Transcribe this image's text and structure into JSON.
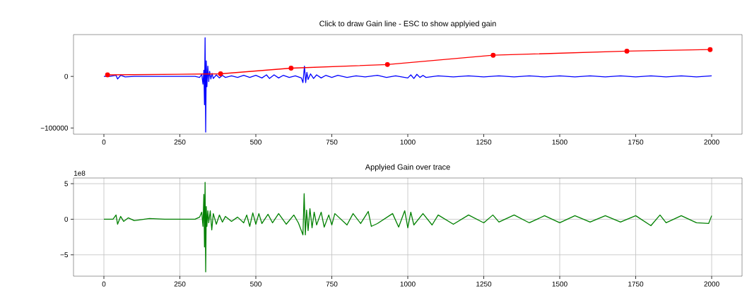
{
  "chart_data": [
    {
      "type": "line",
      "title": "Click to draw Gain line    -    ESC to show applyied gain",
      "xlim": [
        -100,
        2100
      ],
      "ylim": [
        -112000,
        81000
      ],
      "xticks": [
        0,
        250,
        500,
        750,
        1000,
        1250,
        1500,
        1750,
        2000
      ],
      "yticks": [
        {
          "value": -100000,
          "label": "−100000"
        },
        0
      ],
      "grid": false,
      "series": [
        {
          "color": "#0000ff",
          "marker": "none",
          "x": [
            0,
            20,
            40,
            45,
            55,
            70,
            100,
            150,
            200,
            250,
            300,
            315,
            322,
            326,
            329,
            331,
            333,
            335,
            337,
            339,
            342,
            345,
            348,
            352,
            356,
            360,
            370,
            380,
            390,
            400,
            420,
            440,
            460,
            480,
            500,
            520,
            535,
            545,
            560,
            575,
            590,
            610,
            630,
            650,
            655,
            660,
            664,
            668,
            672,
            680,
            690,
            700,
            715,
            730,
            750,
            770,
            800,
            830,
            860,
            900,
            930,
            960,
            1000,
            1010,
            1020,
            1030,
            1040,
            1050,
            1060,
            1100,
            1150,
            1200,
            1250,
            1300,
            1350,
            1400,
            1450,
            1500,
            1550,
            1600,
            1650,
            1700,
            1750,
            1800,
            1850,
            1900,
            1950,
            2000
          ],
          "values": [
            0,
            0,
            2000,
            -5000,
            2000,
            -1000,
            0,
            0,
            0,
            0,
            0,
            -2000,
            4000,
            -15000,
            12000,
            -55000,
            75000,
            -108000,
            30000,
            -20000,
            20000,
            -10000,
            10000,
            -5000,
            6000,
            -4000,
            3000,
            -3000,
            2000,
            -2000,
            1000,
            -2000,
            2000,
            -2000,
            2000,
            -3000,
            3000,
            -4000,
            3000,
            -3000,
            2000,
            -2000,
            1000,
            -3000,
            -12000,
            20000,
            -12000,
            8000,
            -6000,
            5000,
            -4000,
            3000,
            -3000,
            2000,
            -2000,
            2000,
            -2000,
            1000,
            -1000,
            2000,
            -2000,
            1000,
            -3000,
            3000,
            -4000,
            4000,
            -2000,
            2000,
            -2000,
            1000,
            -1000,
            1000,
            -1000,
            1000,
            -1000,
            1000,
            -1000,
            1000,
            -1000,
            1000,
            -1000,
            1000,
            -1000,
            1000,
            -1000,
            1000,
            -1000,
            1000
          ]
        },
        {
          "color": "#ff0000",
          "marker": "circle",
          "x": [
            12,
            384,
            616,
            933,
            1281,
            1721,
            1995
          ],
          "values": [
            3000,
            5000,
            16000,
            23000,
            41000,
            49000,
            52000
          ]
        }
      ]
    },
    {
      "type": "line",
      "title": "Applyied Gain over trace",
      "xlim": [
        -100,
        2100
      ],
      "ylim": [
        -8.0,
        5.8
      ],
      "xticks": [
        0,
        250,
        500,
        750,
        1000,
        1250,
        1500,
        1750,
        2000
      ],
      "yticks": [
        {
          "value": -5,
          "label": "−5"
        },
        0,
        5
      ],
      "grid": true,
      "annotations": [
        "1e8"
      ],
      "series": [
        {
          "color": "#008000",
          "marker": "none",
          "x": [
            0,
            30,
            40,
            45,
            55,
            65,
            80,
            100,
            150,
            200,
            250,
            300,
            315,
            322,
            326,
            329,
            331,
            333,
            335,
            337,
            339,
            342,
            345,
            350,
            355,
            360,
            370,
            380,
            390,
            400,
            420,
            440,
            460,
            470,
            480,
            490,
            500,
            510,
            520,
            540,
            555,
            575,
            600,
            625,
            640,
            655,
            659,
            663,
            667,
            672,
            678,
            685,
            692,
            700,
            715,
            725,
            740,
            750,
            760,
            800,
            820,
            845,
            870,
            880,
            900,
            950,
            970,
            990,
            1000,
            1010,
            1020,
            1050,
            1080,
            1100,
            1150,
            1200,
            1250,
            1280,
            1300,
            1350,
            1400,
            1450,
            1500,
            1550,
            1600,
            1650,
            1700,
            1750,
            1800,
            1830,
            1850,
            1900,
            1950,
            1990,
            2000
          ],
          "values": [
            0,
            0,
            0.6,
            -0.7,
            0.4,
            -0.3,
            0.2,
            -0.2,
            0.1,
            0,
            0,
            0,
            0.3,
            1.0,
            -1.0,
            3.5,
            -3.9,
            5.2,
            -7.4,
            1.8,
            -1.0,
            1.2,
            -0.5,
            1.2,
            -1.5,
            0.8,
            -0.7,
            0.6,
            -0.4,
            0.4,
            -0.3,
            0.3,
            -0.5,
            0.6,
            -1.0,
            0.9,
            -0.7,
            0.8,
            -0.6,
            0.7,
            -0.5,
            0.8,
            -0.7,
            0.6,
            -0.5,
            -2.2,
            3.6,
            -2.2,
            1.3,
            -1.6,
            1.5,
            -1.2,
            1.0,
            -0.8,
            1.0,
            -1.1,
            0.6,
            -0.8,
            0.8,
            -0.8,
            0.8,
            -0.6,
            1.1,
            -1.0,
            -0.6,
            0.8,
            -1.1,
            1.2,
            -1.2,
            1.0,
            -0.8,
            0.8,
            -0.8,
            0.6,
            -0.7,
            0.6,
            -0.5,
            0.6,
            -0.4,
            0.6,
            -0.5,
            0.5,
            -0.5,
            0.5,
            -0.4,
            0.5,
            -0.4,
            0.5,
            -0.9,
            0.6,
            -0.5,
            0.5,
            -0.5,
            -0.6,
            0.5
          ]
        }
      ]
    }
  ]
}
